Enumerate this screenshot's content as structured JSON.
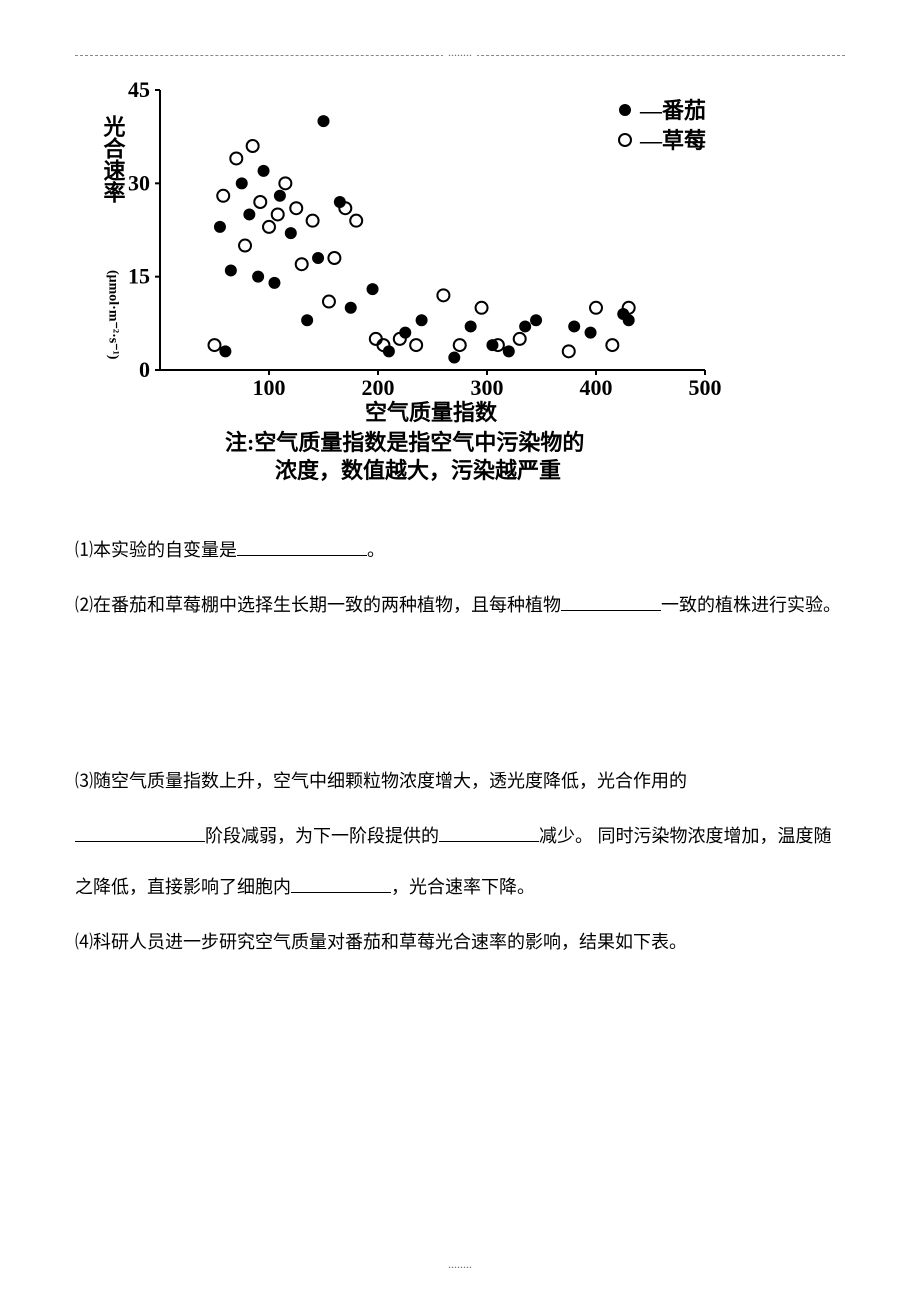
{
  "chart": {
    "type": "scatter",
    "ylabel": "光合速率 (μmol·m⁻²·s⁻¹)",
    "xlabel": "空气质量指数",
    "note_line1": "注:空气质量指数是指空气中污染物的",
    "note_line2": "浓度，数值越大，污染越严重",
    "legend": {
      "tomato": "—番茄",
      "strawberry": "—草莓"
    },
    "xlim": [
      0,
      500
    ],
    "ylim": [
      0,
      45
    ],
    "xticks": [
      100,
      200,
      300,
      400,
      500
    ],
    "yticks": [
      0,
      15,
      30,
      45
    ],
    "background_color": "#ffffff",
    "text_color": "#000000",
    "axis_color": "#000000",
    "marker_size": 6,
    "font_size_label": 22,
    "font_size_tick": 22,
    "tomato_points": [
      [
        55,
        23
      ],
      [
        60,
        3
      ],
      [
        65,
        16
      ],
      [
        75,
        30
      ],
      [
        82,
        25
      ],
      [
        90,
        15
      ],
      [
        95,
        32
      ],
      [
        105,
        14
      ],
      [
        110,
        28
      ],
      [
        120,
        22
      ],
      [
        135,
        8
      ],
      [
        145,
        18
      ],
      [
        150,
        40
      ],
      [
        165,
        27
      ],
      [
        175,
        10
      ],
      [
        195,
        13
      ],
      [
        210,
        3
      ],
      [
        225,
        6
      ],
      [
        240,
        8
      ],
      [
        270,
        2
      ],
      [
        285,
        7
      ],
      [
        305,
        4
      ],
      [
        320,
        3
      ],
      [
        335,
        7
      ],
      [
        345,
        8
      ],
      [
        380,
        7
      ],
      [
        395,
        6
      ],
      [
        425,
        9
      ],
      [
        430,
        8
      ]
    ],
    "strawberry_points": [
      [
        50,
        4
      ],
      [
        58,
        28
      ],
      [
        70,
        34
      ],
      [
        78,
        20
      ],
      [
        85,
        36
      ],
      [
        92,
        27
      ],
      [
        100,
        23
      ],
      [
        108,
        25
      ],
      [
        115,
        30
      ],
      [
        125,
        26
      ],
      [
        130,
        17
      ],
      [
        140,
        24
      ],
      [
        155,
        11
      ],
      [
        160,
        18
      ],
      [
        170,
        26
      ],
      [
        180,
        24
      ],
      [
        198,
        5
      ],
      [
        205,
        4
      ],
      [
        220,
        5
      ],
      [
        235,
        4
      ],
      [
        260,
        12
      ],
      [
        275,
        4
      ],
      [
        295,
        10
      ],
      [
        310,
        4
      ],
      [
        330,
        5
      ],
      [
        375,
        3
      ],
      [
        400,
        10
      ],
      [
        415,
        4
      ],
      [
        430,
        10
      ]
    ]
  },
  "questions": {
    "q1_prefix": "⑴本实验的自变量是",
    "q1_suffix": "。",
    "q2_prefix": "⑵在番茄和草莓棚中选择生长期一致的两种植物，且每种植物",
    "q2_suffix": "一致的植株进行实验。",
    "q3_line1_prefix": "⑶随空气质量指数上升，空气中细颗粒物浓度增大，透光度降低，光合作用的",
    "q3_line2_mid1": "阶段减弱，为下一阶段提供的",
    "q3_line2_mid2": "减少。 同时污染物浓度增加，温度随之降低，直接影响了细胞内",
    "q3_line2_suffix": "，光合速率下降。",
    "q4": "⑷科研人员进一步研究空气质量对番茄和草莓光合速率的影响，结果如下表。"
  }
}
